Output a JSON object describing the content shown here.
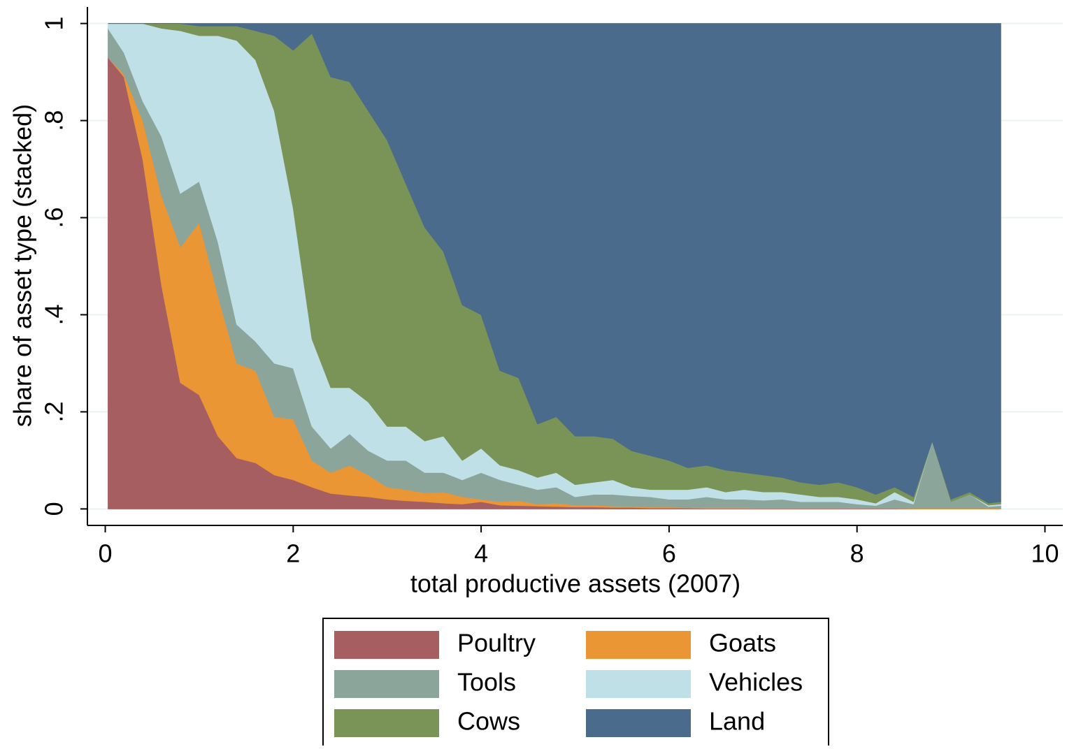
{
  "chart_data": {
    "type": "area",
    "stacked": true,
    "grid": true,
    "legend": "bottom",
    "xlabel": "total productive assets (2007)",
    "ylabel": "share of asset type (stacked)",
    "xlim": [
      -0.19,
      10.19
    ],
    "xticks": [
      0,
      2,
      4,
      6,
      8,
      10
    ],
    "ylim": [
      -0.034,
      1.034
    ],
    "yticks": [
      0,
      {
        "value": 0.2,
        "label": ".2"
      },
      {
        "value": 0.4,
        "label": ".4"
      },
      {
        "value": 0.6,
        "label": ".6"
      },
      {
        "value": 0.8,
        "label": ".8"
      },
      1
    ],
    "x": [
      0.03,
      0.2,
      0.4,
      0.6,
      0.8,
      1.0,
      1.2,
      1.4,
      1.6,
      1.8,
      2.0,
      2.2,
      2.4,
      2.6,
      2.8,
      3.0,
      3.2,
      3.4,
      3.6,
      3.8,
      4.0,
      4.2,
      4.4,
      4.6,
      4.8,
      5.0,
      5.2,
      5.4,
      5.6,
      5.8,
      6.0,
      6.2,
      6.4,
      6.6,
      6.8,
      7.0,
      7.2,
      7.4,
      7.6,
      7.8,
      8.0,
      8.2,
      8.4,
      8.6,
      8.8,
      9.0,
      9.2,
      9.4,
      9.53
    ],
    "series": [
      {
        "name": "Poultry",
        "color": "#a65e61",
        "values": [
          0.93,
          0.89,
          0.72,
          0.46,
          0.26,
          0.235,
          0.15,
          0.105,
          0.095,
          0.07,
          0.06,
          0.045,
          0.032,
          0.028,
          0.025,
          0.02,
          0.017,
          0.015,
          0.012,
          0.01,
          0.015,
          0.008,
          0.007,
          0.006,
          0.005,
          0.004,
          0.004,
          0.003,
          0.003,
          0.002,
          0.002,
          0.002,
          0.001,
          0.001,
          0.001,
          0.001,
          0.001,
          0.001,
          0.001,
          0.001,
          0.001,
          0.001,
          0.001,
          0,
          0,
          0,
          0,
          0,
          0
        ]
      },
      {
        "name": "Goats",
        "color": "#ea9635",
        "values": [
          0,
          0.005,
          0.08,
          0.185,
          0.28,
          0.355,
          0.29,
          0.195,
          0.19,
          0.12,
          0.125,
          0.055,
          0.043,
          0.062,
          0.045,
          0.025,
          0.023,
          0.018,
          0.023,
          0.015,
          0.005,
          0.007,
          0.01,
          0.004,
          0.007,
          0.004,
          0.004,
          0.003,
          0.002,
          0.002,
          0.002,
          0.001,
          0.002,
          0.002,
          0.002,
          0.001,
          0.001,
          0.001,
          0.001,
          0.001,
          0.001,
          0,
          0,
          0.001,
          0.001,
          0.001,
          0.001,
          0.001,
          0.001
        ]
      },
      {
        "name": "Tools",
        "color": "#8ca59b",
        "values": [
          0.06,
          0.045,
          0.04,
          0.122,
          0.11,
          0.085,
          0.11,
          0.08,
          0.06,
          0.11,
          0.105,
          0.07,
          0.05,
          0.065,
          0.05,
          0.055,
          0.06,
          0.042,
          0.04,
          0.035,
          0.055,
          0.045,
          0.033,
          0.03,
          0.033,
          0.017,
          0.022,
          0.024,
          0.022,
          0.021,
          0.016,
          0.017,
          0.022,
          0.017,
          0.017,
          0.016,
          0.018,
          0.013,
          0.013,
          0.013,
          0.008,
          0.006,
          0.019,
          0.009,
          0.139,
          0.014,
          0.029,
          0.004,
          0.006
        ]
      },
      {
        "name": "Vehicles",
        "color": "#c0e0e8",
        "values": [
          0.01,
          0.06,
          0.16,
          0.223,
          0.335,
          0.3,
          0.425,
          0.585,
          0.58,
          0.52,
          0.33,
          0.18,
          0.125,
          0.095,
          0.1,
          0.07,
          0.07,
          0.065,
          0.075,
          0.04,
          0.05,
          0.03,
          0.03,
          0.025,
          0.03,
          0.025,
          0.025,
          0.03,
          0.018,
          0.015,
          0.02,
          0.02,
          0.02,
          0.015,
          0.02,
          0.017,
          0.015,
          0.015,
          0.01,
          0.01,
          0.01,
          0.005,
          0.015,
          0.005,
          0,
          0,
          0,
          0.003,
          0.003
        ]
      },
      {
        "name": "Cows",
        "color": "#7a9457",
        "values": [
          0,
          0,
          0,
          0.01,
          0.015,
          0.02,
          0.02,
          0.03,
          0.06,
          0.155,
          0.325,
          0.63,
          0.64,
          0.63,
          0.6,
          0.59,
          0.5,
          0.44,
          0.38,
          0.32,
          0.275,
          0.195,
          0.19,
          0.11,
          0.115,
          0.1,
          0.095,
          0.085,
          0.075,
          0.07,
          0.06,
          0.045,
          0.045,
          0.045,
          0.035,
          0.035,
          0.03,
          0.025,
          0.025,
          0.03,
          0.025,
          0.018,
          0.01,
          0.01,
          0,
          0.005,
          0.005,
          0.004,
          0.005
        ]
      },
      {
        "name": "Land",
        "color": "#4a6b8b",
        "values": [
          0,
          0,
          0,
          0,
          0,
          0.005,
          0.005,
          0.005,
          0.015,
          0.025,
          0.055,
          0.02,
          0.11,
          0.12,
          0.18,
          0.24,
          0.33,
          0.42,
          0.47,
          0.58,
          0.6,
          0.715,
          0.73,
          0.825,
          0.81,
          0.85,
          0.85,
          0.855,
          0.88,
          0.89,
          0.9,
          0.915,
          0.91,
          0.92,
          0.925,
          0.93,
          0.935,
          0.945,
          0.95,
          0.945,
          0.955,
          0.97,
          0.955,
          0.975,
          0.86,
          0.98,
          0.965,
          0.988,
          0.985
        ]
      }
    ]
  }
}
